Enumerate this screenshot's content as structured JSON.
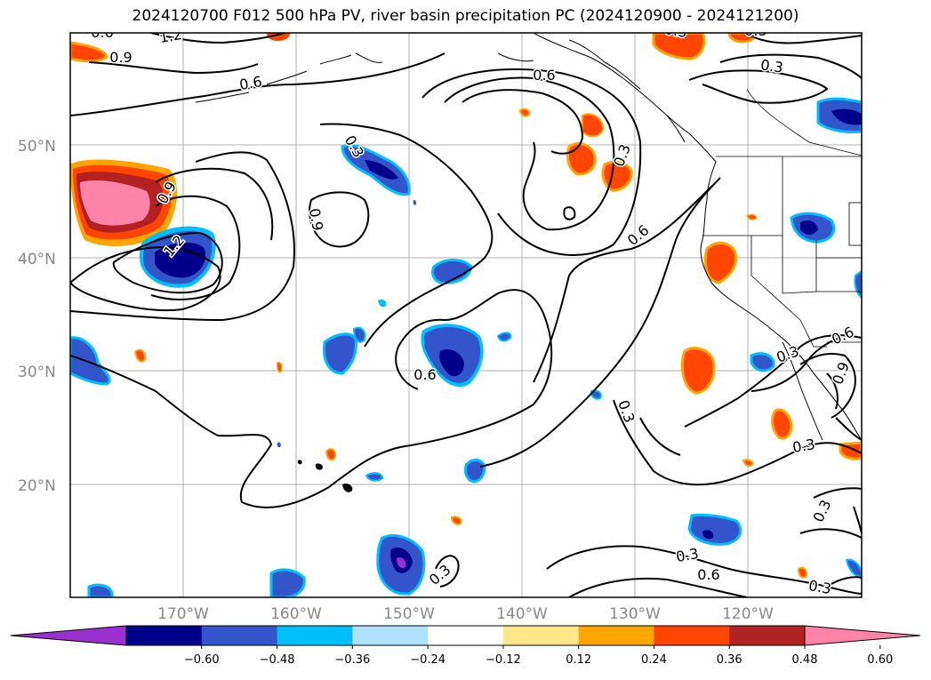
{
  "title": "2024120700 F012 500 hPa PV, river basin precipitation PC (2024120900 - 2024121200)",
  "axes": {
    "lon_labels": [
      "170°W",
      "160°W",
      "150°W",
      "140°W",
      "130°W",
      "120°W"
    ],
    "lat_labels": [
      "50°N",
      "40°N",
      "30°N",
      "20°N"
    ],
    "grid": true
  },
  "colorbar": {
    "orientation": "horizontal",
    "extend": "both",
    "colors": [
      "#9b30d0",
      "#00008b",
      "#3355cc",
      "#00bfff",
      "#b0e0ff",
      "#ffffff",
      "#ffe68a",
      "#ffa500",
      "#ff4500",
      "#b22222",
      "#ff82a9"
    ],
    "tick_labels": [
      "−0.60",
      "−0.48",
      "−0.36",
      "−0.24",
      "−0.12",
      "0.12",
      "0.24",
      "0.36",
      "0.48",
      "0.60"
    ]
  },
  "contour_labels": [
    {
      "text": "1.2"
    },
    {
      "text": "0.9"
    },
    {
      "text": "0.6"
    },
    {
      "text": "0.6"
    },
    {
      "text": "0.3"
    },
    {
      "text": "0.9"
    },
    {
      "text": "0.3"
    },
    {
      "text": "0.3"
    },
    {
      "text": "0.9"
    },
    {
      "text": "0.6"
    },
    {
      "text": "1.2"
    },
    {
      "text": "0.6"
    },
    {
      "text": "0.3"
    },
    {
      "text": "0.3"
    },
    {
      "text": "0.6"
    },
    {
      "text": "0.3"
    },
    {
      "text": "0.9"
    },
    {
      "text": "0.3"
    },
    {
      "text": "0.3"
    },
    {
      "text": "0.3"
    },
    {
      "text": "0.6"
    },
    {
      "text": "0.3"
    },
    {
      "text": "0.3"
    },
    {
      "text": "0.6"
    },
    {
      "text": "0.3"
    }
  ]
}
